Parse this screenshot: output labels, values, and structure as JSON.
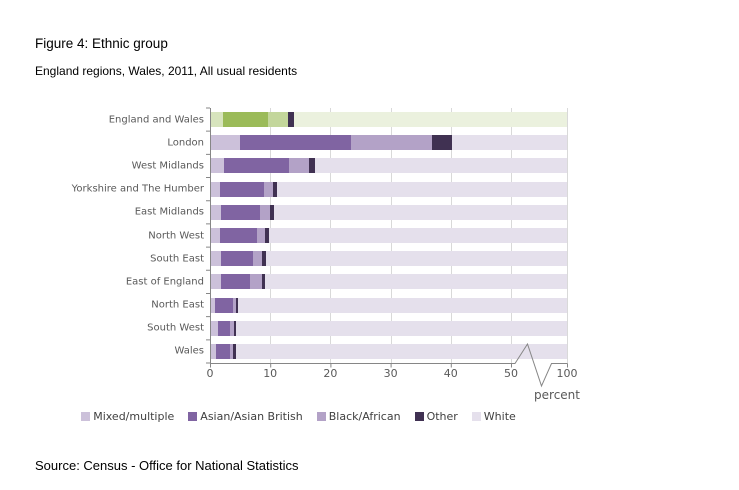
{
  "title": "Figure 4: Ethnic group",
  "subtitle": "England regions, Wales, 2011, All usual residents",
  "source": "Source: Census - Office for National Statistics",
  "chart_data": {
    "type": "bar",
    "orientation": "horizontal",
    "stacked": true,
    "title": "Figure 4: Ethnic group",
    "subtitle": "England regions, Wales, 2011, All usual residents",
    "xlabel": "percent",
    "unit": "percent",
    "xlim": [
      0,
      100
    ],
    "x_ticks": [
      0,
      10,
      20,
      30,
      40,
      50,
      100
    ],
    "axis_break_between": [
      50,
      100
    ],
    "grid": true,
    "legend_position": "bottom",
    "highlight_category": "England and Wales",
    "categories": [
      "England and Wales",
      "London",
      "West Midlands",
      "Yorkshire and The Humber",
      "East Midlands",
      "North West",
      "South East",
      "East of England",
      "North East",
      "South West",
      "Wales"
    ],
    "series": [
      {
        "name": "Mixed/multiple",
        "values": [
          2.2,
          5.0,
          2.4,
          1.6,
          1.9,
          1.6,
          1.9,
          1.9,
          0.9,
          1.4,
          1.0
        ]
      },
      {
        "name": "Asian/Asian British",
        "values": [
          7.5,
          18.5,
          10.8,
          7.3,
          6.4,
          6.2,
          5.2,
          4.8,
          2.9,
          2.0,
          2.3
        ]
      },
      {
        "name": "Black/African",
        "values": [
          3.3,
          13.3,
          3.3,
          1.5,
          1.7,
          1.4,
          1.6,
          2.0,
          0.5,
          0.6,
          0.6
        ]
      },
      {
        "name": "Other",
        "values": [
          1.0,
          3.4,
          0.9,
          0.8,
          0.7,
          0.6,
          0.6,
          0.5,
          0.4,
          0.3,
          0.5
        ]
      },
      {
        "name": "White",
        "values": [
          86.0,
          59.8,
          82.7,
          88.8,
          89.3,
          90.2,
          90.7,
          90.8,
          95.3,
          95.4,
          95.6
        ]
      }
    ],
    "palette": {
      "Mixed/multiple": "#ccc1da",
      "Asian/Asian British": "#8064a2",
      "Black/African": "#b3a2c7",
      "Other": "#403152",
      "White": "#e5e0ec"
    },
    "highlight_palette": {
      "Mixed/multiple": "#d7e4bd",
      "Asian/Asian British": "#9bbb59",
      "Black/African": "#c3d69b",
      "Other": "#403152",
      "White": "#ebf1de"
    },
    "axis_color": "#868686",
    "gridline_color": "#d9d9d9",
    "label_color": "#595959"
  }
}
